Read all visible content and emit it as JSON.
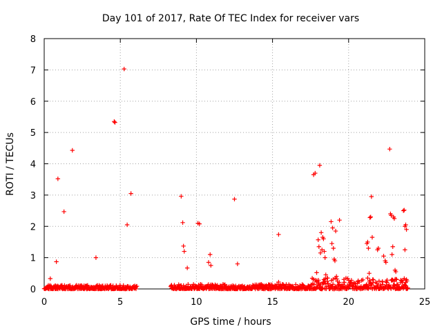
{
  "colors": {
    "series": "#ff0000",
    "axis": "#000000",
    "grid": "#a0a0a0"
  },
  "chart_data": {
    "type": "scatter",
    "title": "Day 101 of 2017, Rate Of TEC Index for receiver vars",
    "xlabel": "GPS time / hours",
    "ylabel": "ROTI / TECUs",
    "xlim": [
      0,
      25
    ],
    "ylim": [
      0,
      8
    ],
    "xticks": [
      0,
      5,
      10,
      15,
      20,
      25
    ],
    "yticks": [
      0,
      1,
      2,
      3,
      4,
      5,
      6,
      7,
      8
    ],
    "grid": true,
    "marker": "plus",
    "series": [
      {
        "name": "vars",
        "dense_baseline_segments": [
          {
            "x_start": 0.0,
            "x_end": 6.1,
            "y_max": 0.12
          },
          {
            "x_start": 8.3,
            "x_end": 17.6,
            "y_max": 0.15
          },
          {
            "x_start": 17.6,
            "x_end": 23.9,
            "y_max": 0.35
          }
        ],
        "points": [
          [
            0.2,
            0.05
          ],
          [
            0.4,
            0.33
          ],
          [
            0.8,
            0.87
          ],
          [
            0.9,
            3.52
          ],
          [
            1.3,
            2.47
          ],
          [
            1.85,
            4.43
          ],
          [
            3.4,
            1.0
          ],
          [
            4.6,
            5.35
          ],
          [
            4.65,
            5.32
          ],
          [
            5.25,
            7.03
          ],
          [
            5.45,
            2.05
          ],
          [
            5.7,
            3.05
          ],
          [
            9.0,
            2.96
          ],
          [
            9.1,
            2.12
          ],
          [
            9.15,
            1.37
          ],
          [
            9.2,
            1.2
          ],
          [
            9.4,
            0.67
          ],
          [
            10.1,
            2.1
          ],
          [
            10.2,
            2.08
          ],
          [
            10.8,
            0.85
          ],
          [
            10.9,
            1.1
          ],
          [
            10.95,
            0.75
          ],
          [
            12.5,
            2.87
          ],
          [
            12.7,
            0.8
          ],
          [
            15.4,
            1.74
          ],
          [
            15.4,
            0.22
          ],
          [
            17.7,
            3.65
          ],
          [
            17.8,
            3.7
          ],
          [
            17.9,
            0.52
          ],
          [
            18.0,
            1.57
          ],
          [
            18.05,
            1.35
          ],
          [
            18.1,
            3.95
          ],
          [
            18.15,
            1.15
          ],
          [
            18.2,
            1.8
          ],
          [
            18.25,
            1.25
          ],
          [
            18.3,
            1.65
          ],
          [
            18.35,
            1.6
          ],
          [
            18.4,
            1.2
          ],
          [
            18.45,
            1.0
          ],
          [
            18.5,
            0.45
          ],
          [
            18.6,
            0.35
          ],
          [
            18.85,
            2.15
          ],
          [
            18.9,
            1.45
          ],
          [
            18.95,
            1.95
          ],
          [
            19.0,
            1.3
          ],
          [
            19.05,
            0.95
          ],
          [
            19.1,
            0.9
          ],
          [
            19.15,
            1.85
          ],
          [
            19.2,
            0.4
          ],
          [
            19.4,
            2.2
          ],
          [
            21.2,
            1.45
          ],
          [
            21.25,
            1.5
          ],
          [
            21.3,
            1.3
          ],
          [
            21.35,
            0.5
          ],
          [
            21.4,
            2.28
          ],
          [
            21.45,
            2.3
          ],
          [
            21.5,
            2.95
          ],
          [
            21.55,
            1.65
          ],
          [
            21.6,
            0.3
          ],
          [
            21.9,
            1.25
          ],
          [
            21.95,
            1.3
          ],
          [
            22.0,
            0.25
          ],
          [
            22.3,
            1.05
          ],
          [
            22.4,
            0.9
          ],
          [
            22.45,
            0.85
          ],
          [
            22.7,
            4.47
          ],
          [
            22.75,
            2.4
          ],
          [
            22.8,
            2.35
          ],
          [
            22.85,
            1.1
          ],
          [
            22.9,
            1.35
          ],
          [
            22.95,
            2.3
          ],
          [
            23.0,
            2.25
          ],
          [
            23.05,
            0.6
          ],
          [
            23.1,
            0.55
          ],
          [
            23.15,
            0.3
          ],
          [
            23.6,
            2.5
          ],
          [
            23.65,
            2.52
          ],
          [
            23.7,
            2.0
          ],
          [
            23.75,
            2.05
          ],
          [
            23.8,
            1.9
          ],
          [
            23.7,
            1.25
          ],
          [
            23.8,
            0.3
          ]
        ]
      }
    ]
  }
}
